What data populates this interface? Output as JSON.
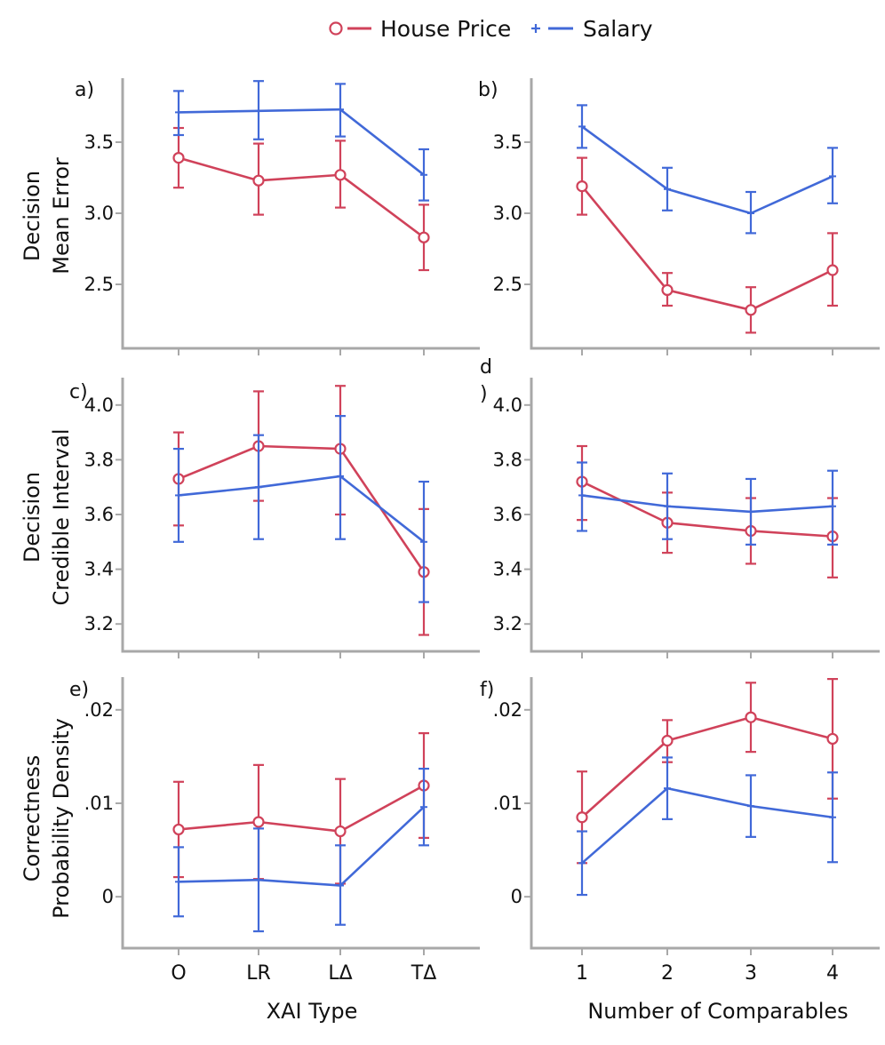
{
  "colors": {
    "house": "#d0425a",
    "salary": "#4169d8",
    "axis": "#a8a8a8"
  },
  "legend": [
    {
      "name": "House Price",
      "marker": "circle"
    },
    {
      "name": "Salary",
      "marker": "plus"
    }
  ],
  "row_labels": [
    [
      "Decision",
      "Mean Error"
    ],
    [
      "Decision",
      "Credible Interval"
    ],
    [
      "Correctness",
      "Probability Density"
    ]
  ],
  "x_axis_titles": {
    "left": "XAI Type",
    "right": "Number of Comparables"
  },
  "chart_data": [
    {
      "type": "line",
      "panel": "a)",
      "ylim": [
        2.05,
        3.95
      ],
      "yticks": [
        "2.5",
        "3.0",
        "3.5"
      ],
      "ytick_values": [
        2.5,
        3.0,
        3.5
      ],
      "categories": [
        "O",
        "LR",
        "LΔ",
        "TΔ"
      ],
      "series": [
        {
          "name": "House Price",
          "values": [
            3.39,
            3.23,
            3.27,
            2.83
          ],
          "lo": [
            3.18,
            2.99,
            3.04,
            2.6
          ],
          "hi": [
            3.6,
            3.49,
            3.51,
            3.06
          ]
        },
        {
          "name": "Salary",
          "values": [
            3.71,
            3.72,
            3.73,
            3.27
          ],
          "lo": [
            3.55,
            3.52,
            3.54,
            3.09
          ],
          "hi": [
            3.86,
            3.93,
            3.91,
            3.45
          ]
        }
      ]
    },
    {
      "type": "line",
      "panel": "b)",
      "ylim": [
        2.05,
        3.95
      ],
      "yticks": [
        "2.5",
        "3.0",
        "3.5"
      ],
      "ytick_values": [
        2.5,
        3.0,
        3.5
      ],
      "categories": [
        "1",
        "2",
        "3",
        "4"
      ],
      "series": [
        {
          "name": "House Price",
          "values": [
            3.19,
            2.46,
            2.32,
            2.6
          ],
          "lo": [
            2.99,
            2.35,
            2.16,
            2.35
          ],
          "hi": [
            3.39,
            2.58,
            2.48,
            2.86
          ]
        },
        {
          "name": "Salary",
          "values": [
            3.61,
            3.17,
            3.0,
            3.26
          ],
          "lo": [
            3.46,
            3.02,
            2.86,
            3.07
          ],
          "hi": [
            3.76,
            3.32,
            3.15,
            3.46
          ]
        }
      ]
    },
    {
      "type": "line",
      "panel": "c)",
      "ylim": [
        3.1,
        4.1
      ],
      "yticks": [
        "3.2",
        "3.4",
        "3.6",
        "3.8",
        "4.0"
      ],
      "ytick_values": [
        3.2,
        3.4,
        3.6,
        3.8,
        4.0
      ],
      "categories": [
        "O",
        "LR",
        "LΔ",
        "TΔ"
      ],
      "series": [
        {
          "name": "House Price",
          "values": [
            3.73,
            3.85,
            3.84,
            3.39
          ],
          "lo": [
            3.56,
            3.65,
            3.6,
            3.16
          ],
          "hi": [
            3.9,
            4.05,
            4.07,
            3.62
          ]
        },
        {
          "name": "Salary",
          "values": [
            3.67,
            3.7,
            3.74,
            3.5
          ],
          "lo": [
            3.5,
            3.51,
            3.51,
            3.28
          ],
          "hi": [
            3.84,
            3.89,
            3.96,
            3.72
          ]
        }
      ]
    },
    {
      "type": "line",
      "panel": "d\n)",
      "ylim": [
        3.1,
        4.1
      ],
      "yticks": [
        "3.2",
        "3.4",
        "3.6",
        "3.8",
        "4.0"
      ],
      "ytick_values": [
        3.2,
        3.4,
        3.6,
        3.8,
        4.0
      ],
      "categories": [
        "1",
        "2",
        "3",
        "4"
      ],
      "series": [
        {
          "name": "House Price",
          "values": [
            3.72,
            3.57,
            3.54,
            3.52
          ],
          "lo": [
            3.58,
            3.46,
            3.42,
            3.37
          ],
          "hi": [
            3.85,
            3.68,
            3.66,
            3.66
          ]
        },
        {
          "name": "Salary",
          "values": [
            3.67,
            3.63,
            3.61,
            3.63
          ],
          "lo": [
            3.54,
            3.51,
            3.49,
            3.49
          ],
          "hi": [
            3.79,
            3.75,
            3.73,
            3.76
          ]
        }
      ]
    },
    {
      "type": "line",
      "panel": "e)",
      "ylim": [
        -0.0055,
        0.0235
      ],
      "yticks": [
        "0",
        ".01",
        ".02"
      ],
      "ytick_values": [
        0,
        0.01,
        0.02
      ],
      "categories": [
        "O",
        "LR",
        "LΔ",
        "TΔ"
      ],
      "series": [
        {
          "name": "House Price",
          "values": [
            0.0072,
            0.008,
            0.007,
            0.0119
          ],
          "lo": [
            0.0021,
            0.0019,
            0.0014,
            0.0063
          ],
          "hi": [
            0.0123,
            0.0141,
            0.0126,
            0.0175
          ]
        },
        {
          "name": "Salary",
          "values": [
            0.0016,
            0.0018,
            0.0012,
            0.0096
          ],
          "lo": [
            -0.0021,
            -0.0037,
            -0.003,
            0.0055
          ],
          "hi": [
            0.0053,
            0.0073,
            0.0055,
            0.0137
          ]
        }
      ]
    },
    {
      "type": "line",
      "panel": "f)",
      "ylim": [
        -0.0055,
        0.0235
      ],
      "yticks": [
        "0",
        ".01",
        ".02"
      ],
      "ytick_values": [
        0,
        0.01,
        0.02
      ],
      "categories": [
        "1",
        "2",
        "3",
        "4"
      ],
      "series": [
        {
          "name": "House Price",
          "values": [
            0.0085,
            0.0167,
            0.0192,
            0.0169
          ],
          "lo": [
            0.0036,
            0.0144,
            0.0155,
            0.0105
          ],
          "hi": [
            0.0134,
            0.0189,
            0.0229,
            0.0233
          ]
        },
        {
          "name": "Salary",
          "values": [
            0.0036,
            0.0116,
            0.0097,
            0.0085
          ],
          "lo": [
            0.0002,
            0.0083,
            0.0064,
            0.0037
          ],
          "hi": [
            0.007,
            0.0149,
            0.013,
            0.0133
          ]
        }
      ]
    }
  ]
}
